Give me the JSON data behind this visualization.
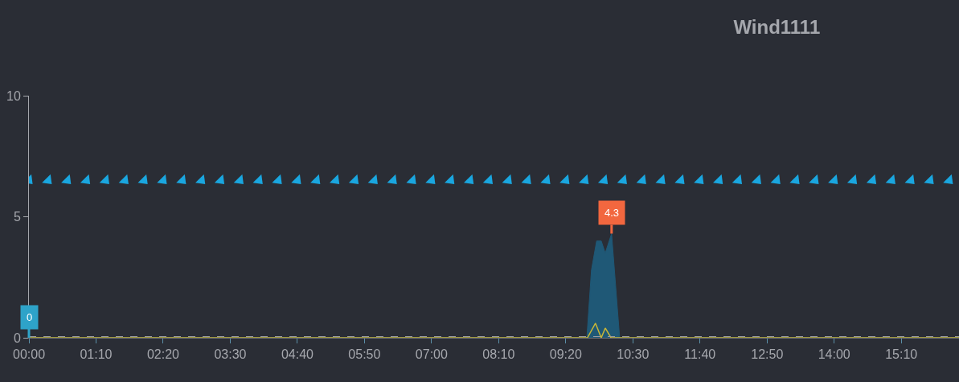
{
  "chart_data": {
    "type": "area",
    "title": "Wind1111",
    "series": [
      {
        "color": "#1f5876",
        "x": [
          0,
          9.7,
          9.78,
          9.87,
          9.95,
          10.02,
          10.13,
          10.27,
          16.17
        ],
        "values": [
          0,
          0,
          2.8,
          4.0,
          4.0,
          3.5,
          4.3,
          0,
          0
        ]
      },
      {
        "type": "line",
        "color": "#c9b637",
        "x": [
          0,
          9.71,
          9.85,
          9.95,
          10.02,
          10.12,
          16.17
        ],
        "values": [
          0,
          0,
          0.6,
          0,
          0.4,
          0,
          0
        ]
      },
      {
        "type": "scatter",
        "color": "#1aa6df",
        "marker": "triangle",
        "x": [
          0,
          0.333,
          0.667,
          1,
          1.333,
          1.667,
          2,
          2.333,
          2.667,
          3,
          3.333,
          3.667,
          4,
          4.333,
          4.667,
          5,
          5.333,
          5.667,
          6,
          6.333,
          6.667,
          7,
          7.333,
          7.667,
          8,
          8.333,
          8.667,
          9,
          9.333,
          9.667,
          10,
          10.333,
          10.667,
          11,
          11.333,
          11.667,
          12,
          12.333,
          12.667,
          13,
          13.333,
          13.667,
          14,
          14.333,
          14.667,
          15,
          15.333,
          15.667,
          16
        ],
        "values": [
          6.5,
          6.5,
          6.5,
          6.5,
          6.5,
          6.5,
          6.5,
          6.5,
          6.5,
          6.5,
          6.5,
          6.5,
          6.5,
          6.5,
          6.5,
          6.5,
          6.5,
          6.5,
          6.5,
          6.5,
          6.5,
          6.5,
          6.5,
          6.5,
          6.5,
          6.5,
          6.5,
          6.5,
          6.5,
          6.5,
          6.5,
          6.5,
          6.5,
          6.5,
          6.5,
          6.5,
          6.5,
          6.5,
          6.5,
          6.5,
          6.5,
          6.5,
          6.5,
          6.5,
          6.5,
          6.5,
          6.5,
          6.5,
          6.5
        ]
      }
    ],
    "annotations": [
      {
        "text": "0",
        "x": 0,
        "y": 0
      },
      {
        "text": "4.3",
        "x": 10.13,
        "y": 4.3
      }
    ],
    "ref_lines": [
      {
        "axis": "y",
        "value": 0.05,
        "color": "#9a9ca3",
        "line_style": "dashed"
      }
    ],
    "xlim": [
      0,
      16.17
    ],
    "xticks": [
      {
        "value": 0,
        "label": "00:00"
      },
      {
        "value": 1.1667,
        "label": "01:10"
      },
      {
        "value": 2.3333,
        "label": "02:20"
      },
      {
        "value": 3.5,
        "label": "03:30"
      },
      {
        "value": 4.6667,
        "label": "04:40"
      },
      {
        "value": 5.8333,
        "label": "05:50"
      },
      {
        "value": 7,
        "label": "07:00"
      },
      {
        "value": 8.1667,
        "label": "08:10"
      },
      {
        "value": 9.3333,
        "label": "09:20"
      },
      {
        "value": 10.5,
        "label": "10:30"
      },
      {
        "value": 11.6667,
        "label": "11:40"
      },
      {
        "value": 12.8333,
        "label": "12:50"
      },
      {
        "value": 14,
        "label": "14:00"
      },
      {
        "value": 15.1667,
        "label": "15:10"
      }
    ],
    "ylim": [
      0,
      10
    ],
    "yticks": [
      0,
      5,
      10
    ],
    "grid": false,
    "legend": false
  }
}
